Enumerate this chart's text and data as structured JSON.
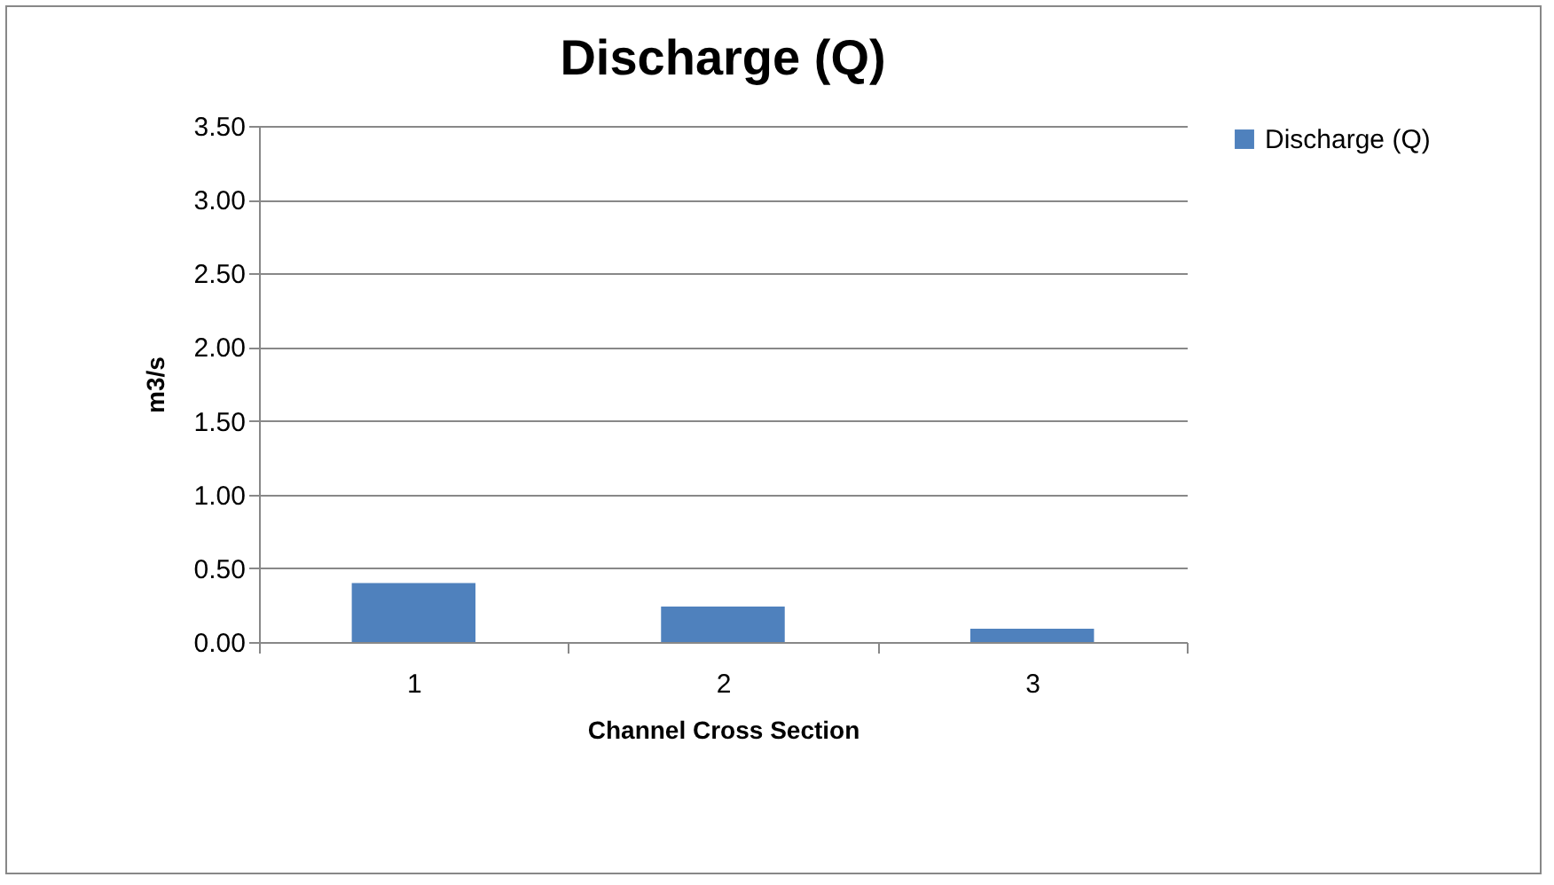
{
  "chart_data": {
    "type": "bar",
    "title": "Discharge (Q)",
    "xlabel": "Channel Cross Section",
    "ylabel": "m3/s",
    "categories": [
      "1",
      "2",
      "3"
    ],
    "series": [
      {
        "name": "Discharge (Q)",
        "color": "#4f81bd",
        "values": [
          0.4,
          0.24,
          0.09
        ]
      }
    ],
    "ylim": [
      0,
      3.5
    ],
    "yticks": [
      {
        "value": 0,
        "label": "0.00"
      },
      {
        "value": 0.5,
        "label": "0.50"
      },
      {
        "value": 1,
        "label": "1.00"
      },
      {
        "value": 1.5,
        "label": "1.50"
      },
      {
        "value": 2,
        "label": "2.00"
      },
      {
        "value": 2.5,
        "label": "2.50"
      },
      {
        "value": 3,
        "label": "3.00"
      },
      {
        "value": 3.5,
        "label": "3.50"
      }
    ],
    "grid": "y",
    "legend": "right"
  }
}
